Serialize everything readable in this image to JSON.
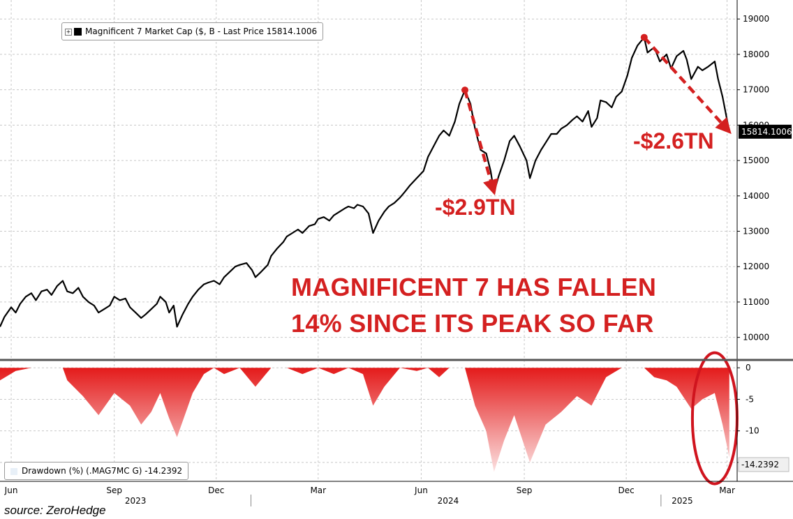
{
  "source_label": "source: ZeroHedge",
  "headline_lines": [
    "MAGNIFICENT 7 HAS FALLEN",
    "14% SINCE ITS PEAK SO FAR"
  ],
  "annotations": [
    {
      "text": "-$2.9TN",
      "from_date": "2024-07-10",
      "from_value": 16990,
      "to_date": "2024-08-05",
      "to_value": 14100
    },
    {
      "text": "-$2.6TN",
      "from_date": "2024-12-17",
      "from_value": 18480,
      "to_date": "2025-03-03",
      "to_value": 15814
    }
  ],
  "colors": {
    "annotation": "#d42020",
    "line": "#000000",
    "drawdown_top": "#e41b1b",
    "drawdown_bottom": "#fbe0e0",
    "grid": "#c8c8c8",
    "separator": "#555555",
    "ellipse": "#d0141e"
  },
  "chart_data": [
    {
      "type": "line",
      "legend_label": "Magnificent 7 Market Cap ($, B - Last Price 15814.1006",
      "last_value_label": "15814.1006",
      "ylim": [
        9500,
        19300
      ],
      "yticks": [
        10000,
        11000,
        12000,
        13000,
        14000,
        15000,
        16000,
        17000,
        18000,
        19000
      ],
      "grid": true,
      "series": [
        {
          "points": [
            [
              "2023-05-22",
              10300
            ],
            [
              "2023-05-26",
              10580
            ],
            [
              "2023-06-01",
              10850
            ],
            [
              "2023-06-05",
              10700
            ],
            [
              "2023-06-09",
              10950
            ],
            [
              "2023-06-14",
              11150
            ],
            [
              "2023-06-19",
              11250
            ],
            [
              "2023-06-23",
              11050
            ],
            [
              "2023-06-28",
              11300
            ],
            [
              "2023-07-03",
              11350
            ],
            [
              "2023-07-07",
              11200
            ],
            [
              "2023-07-12",
              11450
            ],
            [
              "2023-07-17",
              11600
            ],
            [
              "2023-07-21",
              11300
            ],
            [
              "2023-07-26",
              11250
            ],
            [
              "2023-07-31",
              11400
            ],
            [
              "2023-08-04",
              11150
            ],
            [
              "2023-08-09",
              11000
            ],
            [
              "2023-08-14",
              10900
            ],
            [
              "2023-08-18",
              10700
            ],
            [
              "2023-08-23",
              10800
            ],
            [
              "2023-08-28",
              10900
            ],
            [
              "2023-09-01",
              11150
            ],
            [
              "2023-09-06",
              11050
            ],
            [
              "2023-09-11",
              11100
            ],
            [
              "2023-09-15",
              10850
            ],
            [
              "2023-09-20",
              10700
            ],
            [
              "2023-09-25",
              10550
            ],
            [
              "2023-09-29",
              10650
            ],
            [
              "2023-10-04",
              10800
            ],
            [
              "2023-10-09",
              10950
            ],
            [
              "2023-10-12",
              11150
            ],
            [
              "2023-10-17",
              11000
            ],
            [
              "2023-10-20",
              10700
            ],
            [
              "2023-10-24",
              10900
            ],
            [
              "2023-10-27",
              10300
            ],
            [
              "2023-11-01",
              10650
            ],
            [
              "2023-11-06",
              10950
            ],
            [
              "2023-11-10",
              11150
            ],
            [
              "2023-11-15",
              11350
            ],
            [
              "2023-11-20",
              11500
            ],
            [
              "2023-11-24",
              11550
            ],
            [
              "2023-11-29",
              11600
            ],
            [
              "2023-12-04",
              11500
            ],
            [
              "2023-12-08",
              11700
            ],
            [
              "2023-12-13",
              11850
            ],
            [
              "2023-12-18",
              12000
            ],
            [
              "2023-12-22",
              12050
            ],
            [
              "2023-12-28",
              12100
            ],
            [
              "2024-01-02",
              11900
            ],
            [
              "2024-01-05",
              11700
            ],
            [
              "2024-01-10",
              11850
            ],
            [
              "2024-01-16",
              12050
            ],
            [
              "2024-01-19",
              12300
            ],
            [
              "2024-01-24",
              12500
            ],
            [
              "2024-01-30",
              12700
            ],
            [
              "2024-02-02",
              12850
            ],
            [
              "2024-02-07",
              12950
            ],
            [
              "2024-02-12",
              13050
            ],
            [
              "2024-02-16",
              12950
            ],
            [
              "2024-02-22",
              13150
            ],
            [
              "2024-02-27",
              13200
            ],
            [
              "2024-03-01",
              13350
            ],
            [
              "2024-03-06",
              13400
            ],
            [
              "2024-03-11",
              13300
            ],
            [
              "2024-03-15",
              13450
            ],
            [
              "2024-03-20",
              13550
            ],
            [
              "2024-03-25",
              13650
            ],
            [
              "2024-03-28",
              13700
            ],
            [
              "2024-04-02",
              13650
            ],
            [
              "2024-04-05",
              13750
            ],
            [
              "2024-04-10",
              13700
            ],
            [
              "2024-04-15",
              13500
            ],
            [
              "2024-04-19",
              12950
            ],
            [
              "2024-04-24",
              13300
            ],
            [
              "2024-04-29",
              13550
            ],
            [
              "2024-05-03",
              13700
            ],
            [
              "2024-05-08",
              13800
            ],
            [
              "2024-05-13",
              13950
            ],
            [
              "2024-05-17",
              14100
            ],
            [
              "2024-05-22",
              14300
            ],
            [
              "2024-05-28",
              14500
            ],
            [
              "2024-06-03",
              14700
            ],
            [
              "2024-06-07",
              15100
            ],
            [
              "2024-06-12",
              15400
            ],
            [
              "2024-06-17",
              15700
            ],
            [
              "2024-06-21",
              15850
            ],
            [
              "2024-06-26",
              15700
            ],
            [
              "2024-07-01",
              16100
            ],
            [
              "2024-07-05",
              16600
            ],
            [
              "2024-07-10",
              16990
            ],
            [
              "2024-07-15",
              16600
            ],
            [
              "2024-07-19",
              15900
            ],
            [
              "2024-07-24",
              15300
            ],
            [
              "2024-07-29",
              15200
            ],
            [
              "2024-08-02",
              14700
            ],
            [
              "2024-08-05",
              14100
            ],
            [
              "2024-08-09",
              14550
            ],
            [
              "2024-08-14",
              15000
            ],
            [
              "2024-08-19",
              15550
            ],
            [
              "2024-08-23",
              15700
            ],
            [
              "2024-08-28",
              15400
            ],
            [
              "2024-09-03",
              15000
            ],
            [
              "2024-09-06",
              14500
            ],
            [
              "2024-09-11",
              15000
            ],
            [
              "2024-09-16",
              15300
            ],
            [
              "2024-09-20",
              15500
            ],
            [
              "2024-09-25",
              15750
            ],
            [
              "2024-09-30",
              15750
            ],
            [
              "2024-10-04",
              15900
            ],
            [
              "2024-10-09",
              16000
            ],
            [
              "2024-10-14",
              16150
            ],
            [
              "2024-10-18",
              16250
            ],
            [
              "2024-10-23",
              16100
            ],
            [
              "2024-10-28",
              16400
            ],
            [
              "2024-10-31",
              15950
            ],
            [
              "2024-11-05",
              16200
            ],
            [
              "2024-11-08",
              16700
            ],
            [
              "2024-11-13",
              16650
            ],
            [
              "2024-11-18",
              16500
            ],
            [
              "2024-11-22",
              16800
            ],
            [
              "2024-11-27",
              16950
            ],
            [
              "2024-12-02",
              17400
            ],
            [
              "2024-12-06",
              17900
            ],
            [
              "2024-12-11",
              18250
            ],
            [
              "2024-12-17",
              18480
            ],
            [
              "2024-12-20",
              18050
            ],
            [
              "2024-12-26",
              18200
            ],
            [
              "2024-12-31",
              17800
            ],
            [
              "2025-01-06",
              18000
            ],
            [
              "2025-01-10",
              17600
            ],
            [
              "2025-01-15",
              17950
            ],
            [
              "2025-01-21",
              18100
            ],
            [
              "2025-01-24",
              17850
            ],
            [
              "2025-01-28",
              17300
            ],
            [
              "2025-02-03",
              17650
            ],
            [
              "2025-02-07",
              17550
            ],
            [
              "2025-02-12",
              17650
            ],
            [
              "2025-02-18",
              17800
            ],
            [
              "2025-02-21",
              17300
            ],
            [
              "2025-02-25",
              16800
            ],
            [
              "2025-02-28",
              16300
            ],
            [
              "2025-03-03",
              15814
            ]
          ]
        }
      ]
    },
    {
      "type": "area",
      "legend_label": "Drawdown (%) (.MAG7MC G) -14.2392",
      "last_value_label": "-14.2392",
      "ylim": [
        -18,
        0.8
      ],
      "yticks": [
        0,
        -5,
        -10,
        -15
      ],
      "grid": true,
      "series": [
        {
          "points": [
            [
              "2023-05-22",
              -2
            ],
            [
              "2023-06-05",
              -0.5
            ],
            [
              "2023-06-19",
              0
            ],
            [
              "2023-07-03",
              0
            ],
            [
              "2023-07-17",
              0
            ],
            [
              "2023-07-21",
              -2
            ],
            [
              "2023-08-04",
              -4.5
            ],
            [
              "2023-08-18",
              -7.5
            ],
            [
              "2023-09-01",
              -4
            ],
            [
              "2023-09-15",
              -6
            ],
            [
              "2023-09-25",
              -9
            ],
            [
              "2023-10-04",
              -7
            ],
            [
              "2023-10-12",
              -4
            ],
            [
              "2023-10-20",
              -8
            ],
            [
              "2023-10-27",
              -11
            ],
            [
              "2023-11-10",
              -4
            ],
            [
              "2023-11-20",
              -1
            ],
            [
              "2023-11-29",
              0
            ],
            [
              "2023-12-08",
              -1
            ],
            [
              "2023-12-22",
              0
            ],
            [
              "2024-01-05",
              -3
            ],
            [
              "2024-01-19",
              0
            ],
            [
              "2024-02-02",
              0
            ],
            [
              "2024-02-16",
              -1
            ],
            [
              "2024-03-01",
              0
            ],
            [
              "2024-03-15",
              -1
            ],
            [
              "2024-03-28",
              0
            ],
            [
              "2024-04-10",
              -1
            ],
            [
              "2024-04-19",
              -6
            ],
            [
              "2024-04-29",
              -3
            ],
            [
              "2024-05-13",
              0
            ],
            [
              "2024-05-28",
              -0.5
            ],
            [
              "2024-06-07",
              0
            ],
            [
              "2024-06-17",
              -1.5
            ],
            [
              "2024-06-26",
              0
            ],
            [
              "2024-07-10",
              0
            ],
            [
              "2024-07-19",
              -6
            ],
            [
              "2024-07-29",
              -10
            ],
            [
              "2024-08-05",
              -16.5
            ],
            [
              "2024-08-14",
              -11.5
            ],
            [
              "2024-08-23",
              -7.5
            ],
            [
              "2024-09-06",
              -15
            ],
            [
              "2024-09-20",
              -9
            ],
            [
              "2024-10-04",
              -7
            ],
            [
              "2024-10-18",
              -4.5
            ],
            [
              "2024-10-31",
              -6
            ],
            [
              "2024-11-13",
              -1.5
            ],
            [
              "2024-11-27",
              0
            ],
            [
              "2024-12-06",
              0
            ],
            [
              "2024-12-17",
              0
            ],
            [
              "2024-12-26",
              -1.5
            ],
            [
              "2025-01-06",
              -2
            ],
            [
              "2025-01-15",
              -3
            ],
            [
              "2025-01-28",
              -6.5
            ],
            [
              "2025-02-07",
              -5
            ],
            [
              "2025-02-18",
              -4
            ],
            [
              "2025-02-25",
              -9
            ],
            [
              "2025-03-03",
              -14.2392
            ]
          ]
        }
      ]
    }
  ],
  "x_axis": {
    "ticks": [
      {
        "label": "Jun",
        "date": "2023-06-01"
      },
      {
        "label": "Sep",
        "date": "2023-09-01"
      },
      {
        "label": "Dec",
        "date": "2023-12-01"
      },
      {
        "label": "Mar",
        "date": "2024-03-01"
      },
      {
        "label": "Jun",
        "date": "2024-06-01"
      },
      {
        "label": "Sep",
        "date": "2024-09-01"
      },
      {
        "label": "Dec",
        "date": "2024-12-01"
      },
      {
        "label": "Mar",
        "date": "2025-03-01"
      }
    ],
    "years": [
      {
        "label": "2023",
        "date": "2023-09-20"
      },
      {
        "label": "2024",
        "date": "2024-06-25"
      },
      {
        "label": "2025",
        "date": "2025-01-20"
      }
    ]
  }
}
